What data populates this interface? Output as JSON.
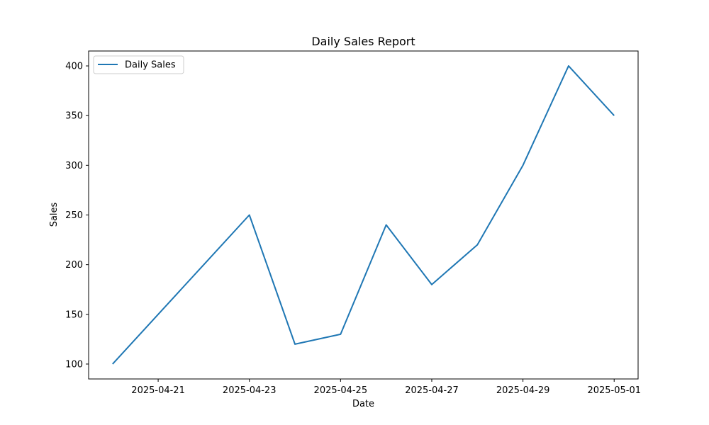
{
  "chart_data": {
    "type": "line",
    "title": "Daily Sales Report",
    "xlabel": "Date",
    "ylabel": "Sales",
    "x": [
      "2025-04-20",
      "2025-04-21",
      "2025-04-22",
      "2025-04-23",
      "2025-04-24",
      "2025-04-25",
      "2025-04-26",
      "2025-04-27",
      "2025-04-28",
      "2025-04-29",
      "2025-04-30",
      "2025-05-01"
    ],
    "series": [
      {
        "name": "Daily Sales",
        "color": "#1f77b4",
        "values": [
          100,
          150,
          200,
          250,
          120,
          130,
          240,
          180,
          220,
          300,
          400,
          350
        ]
      }
    ],
    "x_ticks": [
      "2025-04-21",
      "2025-04-23",
      "2025-04-25",
      "2025-04-27",
      "2025-04-29",
      "2025-05-01"
    ],
    "y_ticks": [
      100,
      150,
      200,
      250,
      300,
      350,
      400
    ],
    "xlim": [
      "2025-04-19T11:24",
      "2025-05-01T12:36"
    ],
    "ylim": [
      85,
      415
    ],
    "grid": false,
    "legend_position": "top-left"
  }
}
